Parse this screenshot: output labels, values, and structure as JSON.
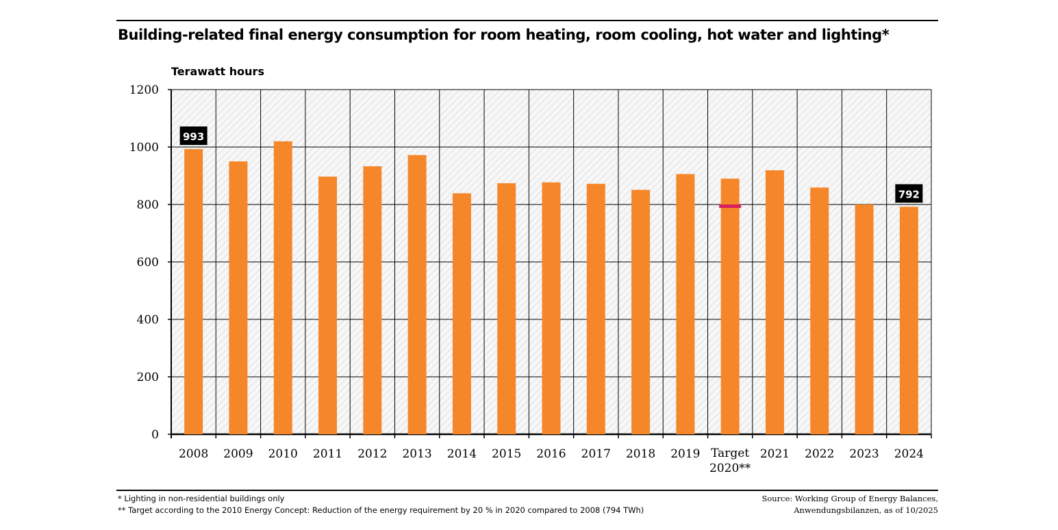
{
  "chart_data": {
    "type": "bar",
    "title": "Building-related final energy consumption for room heating, room cooling, hot water and lighting*",
    "ylabel": "Terawatt hours",
    "xlabel": "",
    "categories": [
      "2008",
      "2009",
      "2010",
      "2011",
      "2012",
      "2013",
      "2014",
      "2015",
      "2016",
      "2017",
      "2018",
      "2019",
      "Target 2020**",
      "2021",
      "2022",
      "2023",
      "2024"
    ],
    "values": [
      993,
      950,
      1020,
      897,
      933,
      972,
      839,
      874,
      877,
      872,
      851,
      906,
      890,
      919,
      859,
      800,
      792
    ],
    "ylim": [
      0,
      1200
    ],
    "yticks": [
      "0",
      "200",
      "400",
      "600",
      "800",
      "1000",
      "1200"
    ],
    "grid": true,
    "target_marker": {
      "category": "Target 2020**",
      "value": 794,
      "color": "#d61f5e"
    },
    "data_labels": [
      {
        "category": "2008",
        "text": "993"
      },
      {
        "category": "2024",
        "text": "792"
      }
    ],
    "bar_color": "#f5872a"
  },
  "footnotes": {
    "line1": "* Lighting in non-residential buildings only",
    "line2": "** Target according to the 2010 Energy Concept: Reduction of the energy requirement by 20 % in 2020 compared to 2008 (794 TWh)"
  },
  "source": {
    "line1": "Source: Working Group of Energy Balances,",
    "line2": "Anwendungsbilanzen, as of 10/2025"
  }
}
